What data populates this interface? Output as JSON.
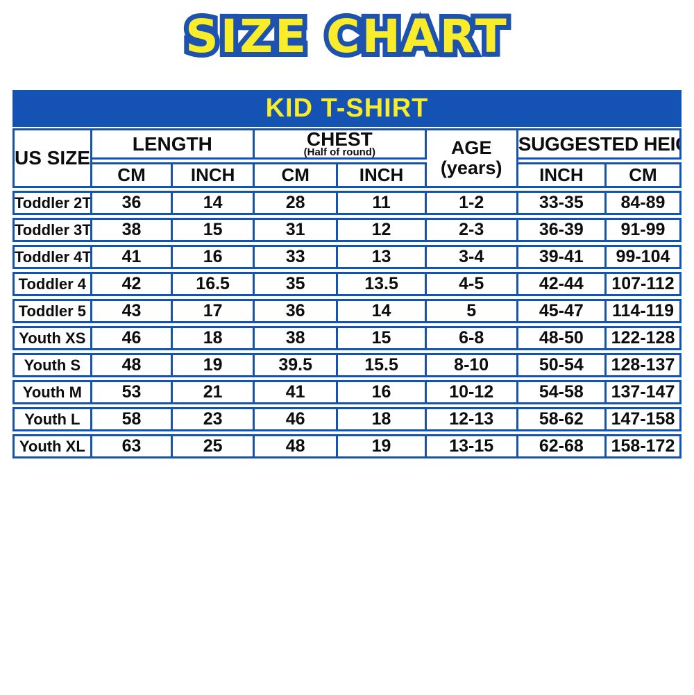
{
  "title": "SIZE CHART",
  "table": {
    "title": "KID T-SHIRT",
    "headers": {
      "us_size": "US SIZE",
      "length": "LENGTH",
      "chest": "CHEST",
      "chest_sub": "(Half of round)",
      "age": "AGE",
      "age_sub": "(years)",
      "suggested_height": "SUGGESTED HEIGHT",
      "cm": "CM",
      "inch": "INCH"
    }
  },
  "colors": {
    "blue": "#1452b4",
    "yellow": "#f8ec2b"
  },
  "chart_data": {
    "type": "table",
    "title": "KID T-SHIRT",
    "columns": [
      "US SIZE",
      "LENGTH CM",
      "LENGTH INCH",
      "CHEST (Half of round) CM",
      "CHEST (Half of round) INCH",
      "AGE (years)",
      "SUGGESTED HEIGHT INCH",
      "SUGGESTED HEIGHT CM"
    ],
    "rows": [
      [
        "Toddler 2T",
        "36",
        "14",
        "28",
        "11",
        "1-2",
        "33-35",
        "84-89"
      ],
      [
        "Toddler 3T",
        "38",
        "15",
        "31",
        "12",
        "2-3",
        "36-39",
        "91-99"
      ],
      [
        "Toddler 4T",
        "41",
        "16",
        "33",
        "13",
        "3-4",
        "39-41",
        "99-104"
      ],
      [
        "Toddler 4",
        "42",
        "16.5",
        "35",
        "13.5",
        "4-5",
        "42-44",
        "107-112"
      ],
      [
        "Toddler 5",
        "43",
        "17",
        "36",
        "14",
        "5",
        "45-47",
        "114-119"
      ],
      [
        "Youth XS",
        "46",
        "18",
        "38",
        "15",
        "6-8",
        "48-50",
        "122-128"
      ],
      [
        "Youth S",
        "48",
        "19",
        "39.5",
        "15.5",
        "8-10",
        "50-54",
        "128-137"
      ],
      [
        "Youth M",
        "53",
        "21",
        "41",
        "16",
        "10-12",
        "54-58",
        "137-147"
      ],
      [
        "Youth L",
        "58",
        "23",
        "46",
        "18",
        "12-13",
        "58-62",
        "147-158"
      ],
      [
        "Youth XL",
        "63",
        "25",
        "48",
        "19",
        "13-15",
        "62-68",
        "158-172"
      ]
    ]
  }
}
